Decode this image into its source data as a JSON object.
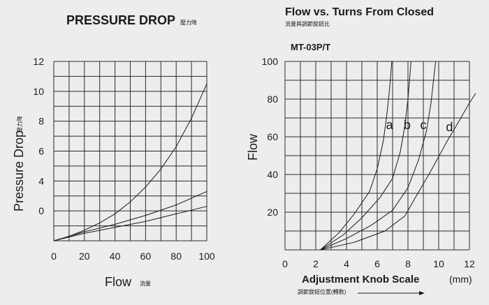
{
  "chart_data": [
    {
      "type": "line",
      "title": "PRESSURE DROP",
      "title_sub": "壓力降",
      "xlabel": "Flow",
      "xlabel_sub": "流量",
      "ylabel": "Pressure Drop",
      "ylabel_sub": "壓力降",
      "x_ticks": [
        "0",
        "20",
        "40",
        "60",
        "80",
        "100"
      ],
      "y_ticks": [
        "12",
        "10",
        "8",
        "6",
        "4",
        "0"
      ],
      "xlim": [
        0,
        100
      ],
      "ylim": [
        0,
        12
      ],
      "grid": true,
      "series": [
        {
          "x": [
            0,
            10,
            20,
            30,
            40,
            50,
            60,
            70,
            80,
            90,
            100
          ],
          "y": [
            0,
            0.3,
            0.7,
            1.2,
            1.8,
            2.6,
            3.6,
            4.8,
            6.3,
            8.2,
            10.5
          ]
        },
        {
          "x": [
            0,
            20,
            40,
            60,
            80,
            100
          ],
          "y": [
            0,
            0.6,
            1.1,
            1.7,
            2.4,
            3.3
          ]
        },
        {
          "x": [
            0,
            20,
            40,
            60,
            80,
            100
          ],
          "y": [
            0,
            0.5,
            0.9,
            1.3,
            1.8,
            2.3
          ]
        }
      ]
    },
    {
      "type": "line",
      "title": "Flow vs. Turns From Closed",
      "title_sub": "流量與調節旋鈕比",
      "model": "MT-03P/T",
      "xlabel": "Adjustment Knob Scale",
      "xlabel_sub": "調節旋鈕位置(轉數)",
      "x_unit": "(mm)",
      "ylabel": "Flow",
      "x_ticks": [
        "0",
        "2",
        "4",
        "6",
        "8",
        "10",
        "12"
      ],
      "y_ticks": [
        "100",
        "80",
        "60",
        "40",
        "20"
      ],
      "xlim": [
        0,
        12
      ],
      "ylim": [
        0,
        100
      ],
      "grid": true,
      "series": [
        {
          "name": "a",
          "x": [
            2.3,
            3.5,
            4.5,
            5.5,
            6.0,
            6.4,
            6.6,
            6.8,
            6.95
          ],
          "y": [
            0,
            9,
            19,
            31,
            43,
            58,
            70,
            85,
            100
          ]
        },
        {
          "name": "b",
          "x": [
            2.3,
            3.8,
            5.0,
            6.2,
            7.0,
            7.5,
            7.8,
            8.0,
            8.1,
            8.2
          ],
          "y": [
            0,
            8,
            17,
            28,
            38,
            52,
            66,
            80,
            90,
            100
          ]
        },
        {
          "name": "c",
          "x": [
            2.3,
            4.0,
            5.6,
            7.0,
            8.0,
            8.7,
            9.2,
            9.5,
            9.8
          ],
          "y": [
            0,
            6,
            13,
            21,
            33,
            48,
            63,
            78,
            100
          ]
        },
        {
          "name": "d",
          "x": [
            2.3,
            4.5,
            6.5,
            7.8,
            8.5,
            9.5,
            10.5,
            11.3,
            12.0,
            12.4
          ],
          "y": [
            0,
            4,
            10,
            18,
            28,
            42,
            57,
            68,
            78,
            83
          ]
        }
      ]
    }
  ]
}
